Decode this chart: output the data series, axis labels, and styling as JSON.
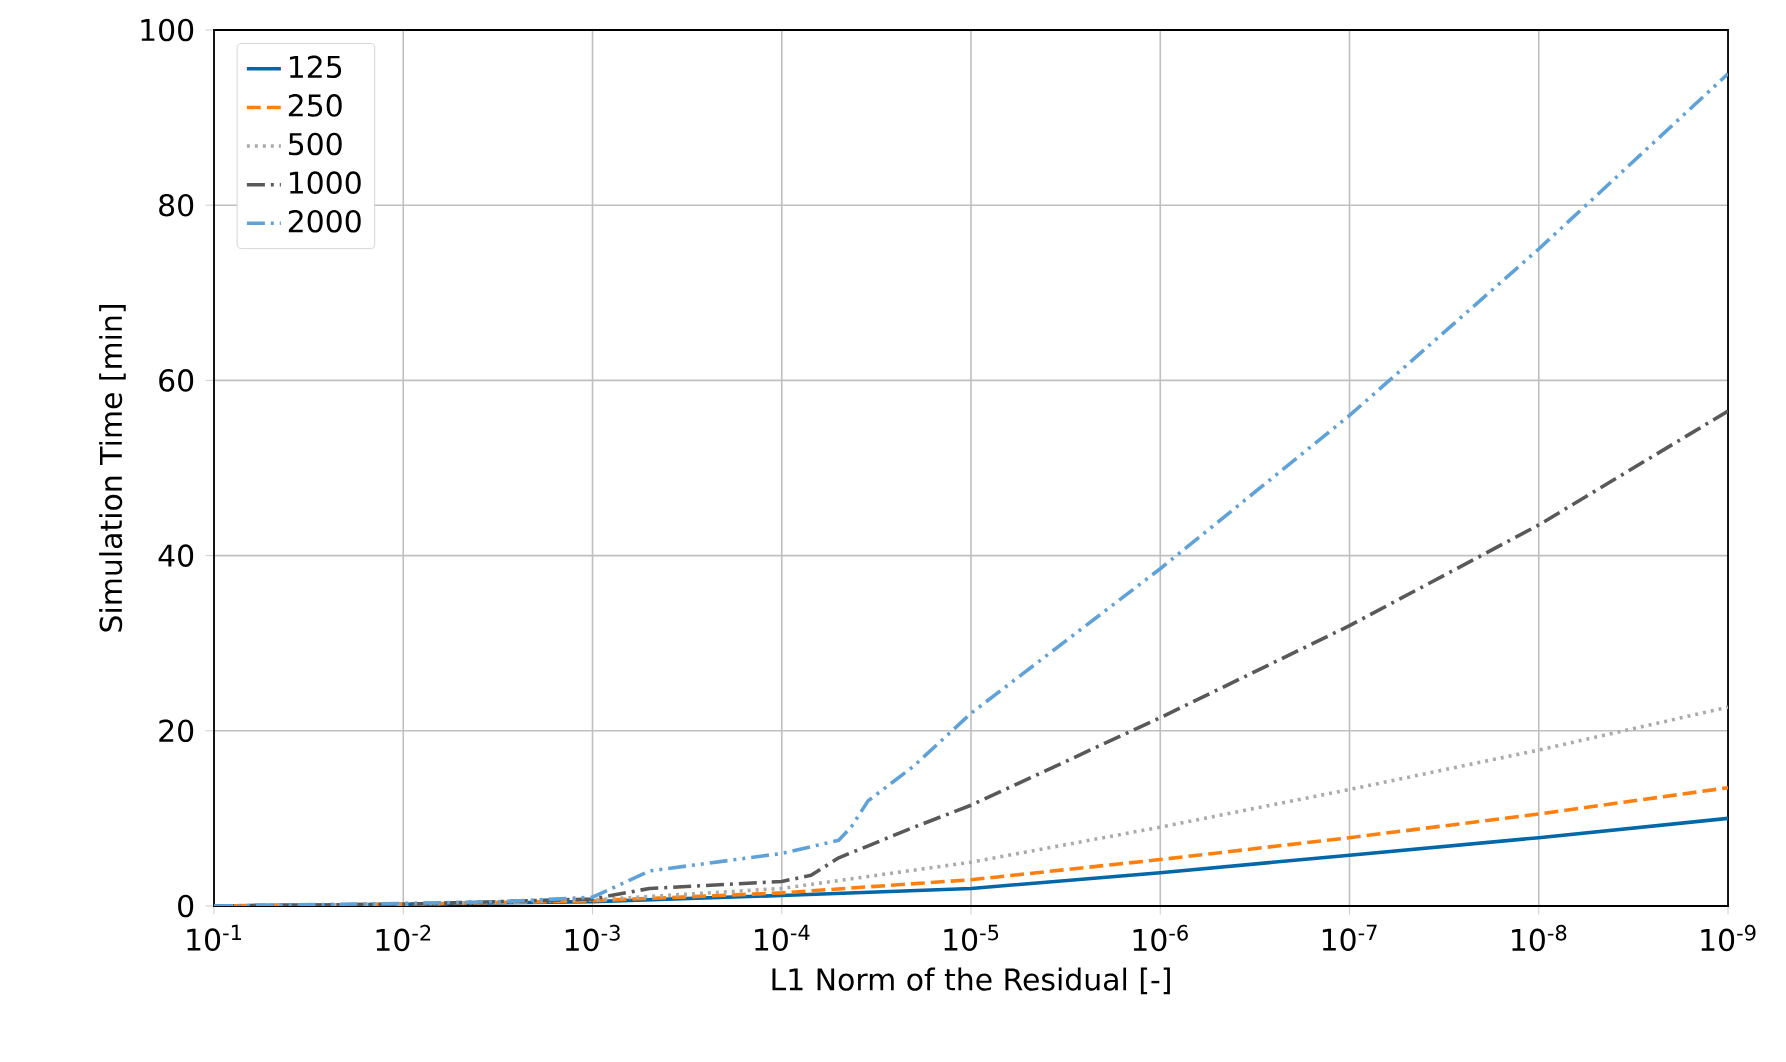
{
  "chart_data": {
    "type": "line",
    "xlabel": "L1 Norm of the Residual [-]",
    "ylabel": "Simulation Time [min]",
    "log": "x",
    "grid": true,
    "legend": "top left",
    "xlim": [
      0.1,
      1e-09
    ],
    "xticks": [
      {
        "value": 0.1,
        "label": "10$^{-1}$"
      },
      {
        "value": 0.01,
        "label": "10$^{-2}$"
      },
      {
        "value": 0.001,
        "label": "10$^{-3}$"
      },
      {
        "value": 0.0001,
        "label": "10$^{-4}$"
      },
      {
        "value": 1e-05,
        "label": "10$^{-5}$"
      },
      {
        "value": 1e-06,
        "label": "10$^{-6}$"
      },
      {
        "value": 1e-07,
        "label": "10$^{-7}$"
      },
      {
        "value": 1e-08,
        "label": "10$^{-8}$"
      },
      {
        "value": 1e-09,
        "label": "10$^{-9}$"
      }
    ],
    "ylim": [
      0,
      100
    ],
    "yticks": [
      0,
      20,
      40,
      60,
      80,
      100
    ],
    "series": [
      {
        "name": "125",
        "color": "#0068a8",
        "line_style": "solid",
        "x": [
          0.1,
          0.01,
          0.001,
          0.0001,
          1e-05,
          1e-06,
          1e-07,
          1e-08,
          1e-09
        ],
        "values": [
          0,
          0.2,
          0.5,
          1.2,
          2,
          3.8,
          5.8,
          7.8,
          10
        ]
      },
      {
        "name": "250",
        "color": "#ff800e",
        "line_style": "dashed",
        "x": [
          0.1,
          0.01,
          0.001,
          0.0001,
          1e-05,
          1e-06,
          1e-07,
          1e-08,
          1e-09
        ],
        "values": [
          0,
          0.2,
          0.6,
          1.5,
          3,
          5.3,
          7.8,
          10.5,
          13.5
        ]
      },
      {
        "name": "500",
        "color": "#ababab",
        "line_style": "dotted",
        "x": [
          0.1,
          0.01,
          0.001,
          0.0001,
          1e-05,
          1e-06,
          1e-07,
          1e-08,
          1e-09
        ],
        "values": [
          0,
          0.2,
          0.7,
          2,
          5,
          9,
          13.3,
          17.8,
          22.7
        ]
      },
      {
        "name": "1000",
        "color": "#595959",
        "line_style": "dashdot",
        "x": [
          0.1,
          0.01,
          0.001,
          0.0005,
          0.0001,
          7e-05,
          5e-05,
          2e-05,
          1e-05,
          1e-06,
          1e-07,
          1e-08,
          1e-09
        ],
        "values": [
          0,
          0.2,
          0.8,
          2,
          2.8,
          3.5,
          5.5,
          9,
          11.5,
          21.5,
          32,
          43.5,
          56.5
        ]
      },
      {
        "name": "2000",
        "color": "#5fa2d9",
        "line_style": "dashdotdot",
        "x": [
          0.1,
          0.01,
          0.003,
          0.001,
          0.0005,
          0.0001,
          5e-05,
          4.3e-05,
          3.5e-05,
          2e-05,
          1e-05,
          1e-06,
          1e-07,
          1e-08,
          1e-09
        ],
        "values": [
          0,
          0.3,
          0.5,
          1,
          4,
          6,
          7.5,
          9,
          12,
          16,
          22,
          38.5,
          56,
          75,
          95
        ]
      }
    ]
  }
}
